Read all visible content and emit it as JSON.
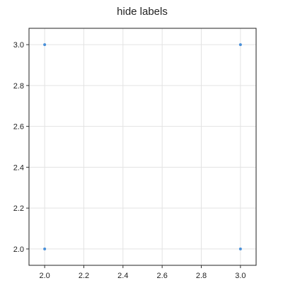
{
  "chart_data": {
    "type": "scatter",
    "title": "hide labels",
    "xlabel": "",
    "ylabel": "",
    "xlim": [
      1.92,
      3.08
    ],
    "ylim": [
      1.92,
      3.08
    ],
    "xticks": [
      "2.0",
      "2.2",
      "2.4",
      "2.6",
      "2.8",
      "3.0"
    ],
    "yticks": [
      "2.0",
      "2.2",
      "2.4",
      "2.6",
      "2.8",
      "3.0"
    ],
    "grid": true,
    "series": [
      {
        "x": [
          2,
          3,
          2,
          3
        ],
        "y": [
          2,
          2,
          3,
          3
        ],
        "color": "#4a90d9"
      }
    ]
  }
}
